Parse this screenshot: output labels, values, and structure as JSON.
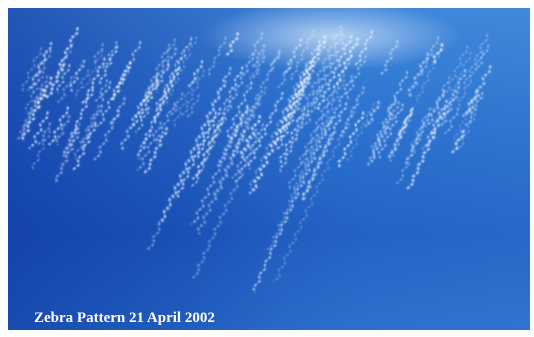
{
  "caption": "Zebra Pattern 21 April 2002"
}
